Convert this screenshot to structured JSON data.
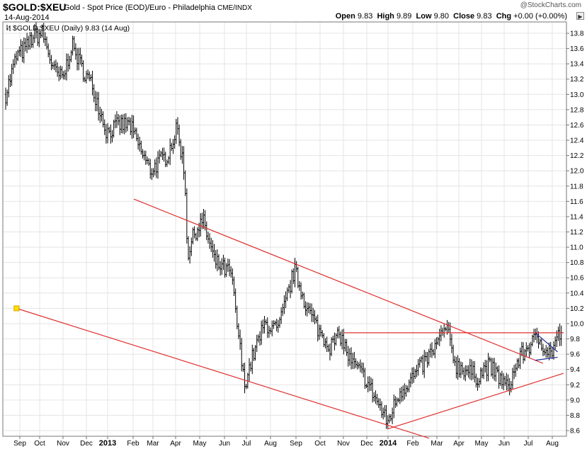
{
  "header": {
    "symbol": "$GOLD:$XEU",
    "description": "Gold - Spot Price (EOD)/Euro - Philadelphia",
    "exchange": "CME/INDX",
    "date": "14-Aug-2014",
    "credit": "@StockCharts.com",
    "quote": {
      "open_label": "Open",
      "open": "9.83",
      "high_label": "High",
      "high": "9.89",
      "low_label": "Low",
      "low": "9.80",
      "close_label": "Close",
      "close": "9.83",
      "chg_label": "Chg",
      "chg": "+0.00 (+0.00%)"
    }
  },
  "chart_data": {
    "type": "ohlc-bar",
    "legend": "$GOLD:$XEU (Daily) 9.83 (14 Aug)",
    "legend_placement": "top-left",
    "ylim": [
      8.55,
      13.9
    ],
    "y_ticks": [
      8.6,
      8.8,
      9.0,
      9.2,
      9.4,
      9.6,
      9.8,
      10.0,
      10.2,
      10.4,
      10.6,
      10.8,
      11.0,
      11.2,
      11.4,
      11.6,
      11.8,
      12.0,
      12.2,
      12.4,
      12.6,
      12.8,
      13.0,
      13.2,
      13.4,
      13.6,
      13.8
    ],
    "x_range": [
      "2012-08-15",
      "2014-08-31"
    ],
    "x_ticks": [
      {
        "label": "Sep",
        "date": "2012-09-01",
        "bold": false
      },
      {
        "label": "Oct",
        "date": "2012-10-01",
        "bold": false
      },
      {
        "label": "Nov",
        "date": "2012-11-01",
        "bold": false
      },
      {
        "label": "Dec",
        "date": "2012-12-01",
        "bold": false
      },
      {
        "label": "2013",
        "date": "2013-01-01",
        "bold": true
      },
      {
        "label": "Feb",
        "date": "2013-02-01",
        "bold": false
      },
      {
        "label": "Mar",
        "date": "2013-03-01",
        "bold": false
      },
      {
        "label": "Apr",
        "date": "2013-04-01",
        "bold": false
      },
      {
        "label": "May",
        "date": "2013-05-01",
        "bold": false
      },
      {
        "label": "Jun",
        "date": "2013-06-01",
        "bold": false
      },
      {
        "label": "Jul",
        "date": "2013-07-01",
        "bold": false
      },
      {
        "label": "Aug",
        "date": "2013-08-01",
        "bold": false
      },
      {
        "label": "Sep",
        "date": "2013-09-01",
        "bold": false
      },
      {
        "label": "Oct",
        "date": "2013-10-01",
        "bold": false
      },
      {
        "label": "Nov",
        "date": "2013-11-01",
        "bold": false
      },
      {
        "label": "Dec",
        "date": "2013-12-01",
        "bold": false
      },
      {
        "label": "2014",
        "date": "2014-01-01",
        "bold": true
      },
      {
        "label": "Feb",
        "date": "2014-02-01",
        "bold": false
      },
      {
        "label": "Mar",
        "date": "2014-03-01",
        "bold": false
      },
      {
        "label": "Apr",
        "date": "2014-04-01",
        "bold": false
      },
      {
        "label": "May",
        "date": "2014-05-01",
        "bold": false
      },
      {
        "label": "Jun",
        "date": "2014-06-01",
        "bold": false
      },
      {
        "label": "Jul",
        "date": "2014-07-01",
        "bold": false
      },
      {
        "label": "Aug",
        "date": "2014-08-01",
        "bold": false
      }
    ],
    "price_path": [
      [
        "2012-08-15",
        13.0
      ],
      [
        "2012-08-28",
        13.5
      ],
      [
        "2012-09-10",
        13.6
      ],
      [
        "2012-09-20",
        13.75
      ],
      [
        "2012-10-05",
        13.8
      ],
      [
        "2012-10-20",
        13.3
      ],
      [
        "2012-11-01",
        13.2
      ],
      [
        "2012-11-12",
        13.65
      ],
      [
        "2012-11-25",
        13.35
      ],
      [
        "2012-12-10",
        13.1
      ],
      [
        "2012-12-31",
        12.5
      ],
      [
        "2013-01-15",
        12.6
      ],
      [
        "2013-01-28",
        12.6
      ],
      [
        "2013-02-10",
        12.3
      ],
      [
        "2013-02-25",
        12.0
      ],
      [
        "2013-03-08",
        12.1
      ],
      [
        "2013-03-20",
        12.2
      ],
      [
        "2013-04-03",
        12.55
      ],
      [
        "2013-04-12",
        12.0
      ],
      [
        "2013-04-16",
        10.9
      ],
      [
        "2013-04-25",
        11.2
      ],
      [
        "2013-05-05",
        11.35
      ],
      [
        "2013-05-20",
        10.8
      ],
      [
        "2013-06-10",
        10.65
      ],
      [
        "2013-06-28",
        9.2
      ],
      [
        "2013-07-10",
        9.6
      ],
      [
        "2013-07-25",
        10.0
      ],
      [
        "2013-08-10",
        9.9
      ],
      [
        "2013-08-30",
        10.7
      ],
      [
        "2013-09-15",
        10.2
      ],
      [
        "2013-09-30",
        9.9
      ],
      [
        "2013-10-15",
        9.7
      ],
      [
        "2013-10-28",
        9.85
      ],
      [
        "2013-11-10",
        9.5
      ],
      [
        "2013-11-28",
        9.3
      ],
      [
        "2013-12-15",
        9.0
      ],
      [
        "2013-12-31",
        8.7
      ],
      [
        "2014-01-15",
        9.1
      ],
      [
        "2014-02-05",
        9.35
      ],
      [
        "2014-02-25",
        9.65
      ],
      [
        "2014-03-14",
        9.95
      ],
      [
        "2014-03-28",
        9.45
      ],
      [
        "2014-04-10",
        9.4
      ],
      [
        "2014-04-25",
        9.3
      ],
      [
        "2014-05-10",
        9.45
      ],
      [
        "2014-05-25",
        9.3
      ],
      [
        "2014-06-05",
        9.15
      ],
      [
        "2014-06-20",
        9.55
      ],
      [
        "2014-07-05",
        9.75
      ],
      [
        "2014-07-15",
        9.8
      ],
      [
        "2014-07-30",
        9.6
      ],
      [
        "2014-08-14",
        9.83
      ]
    ],
    "trendlines": [
      {
        "color": "#e03030",
        "from": [
          "2013-02-02",
          11.63
        ],
        "to": [
          "2014-07-20",
          9.48
        ]
      },
      {
        "color": "#e03030",
        "from": [
          "2012-08-28",
          10.2
        ],
        "to": [
          "2014-02-20",
          8.5
        ]
      },
      {
        "color": "#e03030",
        "from": [
          "2013-11-01",
          9.88
        ],
        "to": [
          "2014-08-31",
          9.88
        ]
      },
      {
        "color": "#e03030",
        "from": [
          "2013-12-31",
          8.62
        ],
        "to": [
          "2014-08-31",
          9.35
        ]
      },
      {
        "color": "#1a2a9a",
        "from": [
          "2014-07-10",
          9.88
        ],
        "to": [
          "2014-08-15",
          9.63
        ]
      },
      {
        "color": "#1a2a9a",
        "from": [
          "2014-07-10",
          9.52
        ],
        "to": [
          "2014-08-15",
          9.56
        ]
      }
    ],
    "marker": {
      "color": "#ffe000",
      "edge": "#d6a400",
      "date": "2012-08-28",
      "value": 10.2
    }
  }
}
